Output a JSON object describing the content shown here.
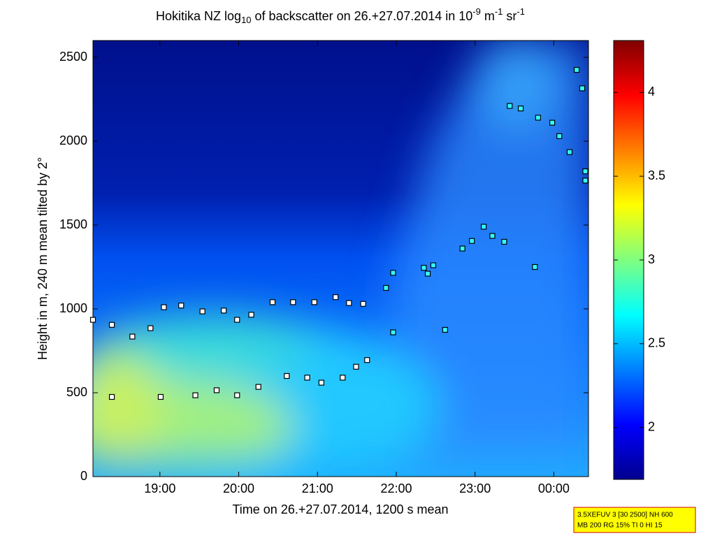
{
  "chart_data": {
    "type": "scatter",
    "title_parts": [
      "Hokitika NZ log",
      "10",
      " of backscatter on 26.+27.07.2014 in 10",
      "-9",
      " m",
      "-1",
      " sr",
      "-1"
    ],
    "x_label": "Time on 26.+27.07.2014, 1200 s mean",
    "y_label": "Height in m, 240 m mean tilted by 2°",
    "xlim": [
      18.15,
      24.44
    ],
    "xticks": [
      {
        "value": 19,
        "label": "19:00"
      },
      {
        "value": 20,
        "label": "20:00"
      },
      {
        "value": 21,
        "label": "21:00"
      },
      {
        "value": 22,
        "label": "22:00"
      },
      {
        "value": 23,
        "label": "23:00"
      },
      {
        "value": 24,
        "label": "00:00"
      }
    ],
    "ylim": [
      0,
      2600
    ],
    "yticks": [
      0,
      500,
      1000,
      1500,
      2000,
      2500
    ],
    "series": [
      {
        "color": "#ffffff",
        "x": [
          18.15,
          18.39,
          18.65,
          18.88,
          19.05,
          19.27,
          19.54,
          19.81,
          19.98,
          20.16,
          20.43,
          20.69,
          20.96,
          21.23,
          21.4,
          21.58
        ],
        "values": [
          935,
          905,
          835,
          885,
          1010,
          1020,
          985,
          990,
          935,
          965,
          1040,
          1040,
          1040,
          1070,
          1035,
          1030
        ]
      },
      {
        "color": "#ffffff",
        "x": [
          18.39,
          19.01,
          19.45,
          19.72,
          19.98,
          20.25,
          20.61,
          20.87,
          21.05,
          21.32,
          21.49,
          21.63
        ],
        "values": [
          475,
          475,
          485,
          515,
          485,
          535,
          600,
          590,
          560,
          590,
          655,
          695
        ]
      },
      {
        "color": "#33ffff",
        "x": [
          21.87,
          21.96,
          21.96,
          22.35,
          22.4,
          22.47,
          22.62,
          22.84,
          22.96,
          23.11,
          23.22,
          23.37,
          23.76,
          23.44,
          23.58,
          23.8,
          23.98,
          24.07,
          24.2,
          24.4,
          24.4,
          24.29,
          24.36
        ],
        "values": [
          1125,
          1215,
          860,
          1245,
          1210,
          1260,
          875,
          1360,
          1405,
          1490,
          1435,
          1400,
          1250,
          2210,
          2195,
          2140,
          2110,
          2030,
          1935,
          1820,
          1765,
          2425,
          2315
        ]
      }
    ],
    "colorbar": {
      "lim": [
        1.69,
        4.31
      ],
      "ticks": [
        2,
        2.5,
        3,
        3.5,
        4
      ]
    },
    "info_lines": [
      "3.5XEFUV 3 [30 2500] NH 600",
      "MB 200 RG 15% TI 0 HI 15"
    ]
  }
}
